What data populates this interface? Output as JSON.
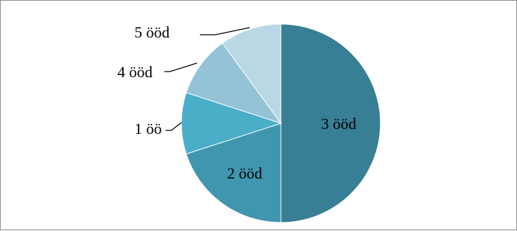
{
  "chart_data": {
    "type": "pie",
    "title": "",
    "start_angle_deg": 0,
    "direction": "clockwise",
    "slices": [
      {
        "label": "3 ööd",
        "value": 50,
        "color": "#377f95"
      },
      {
        "label": "2 ööd",
        "value": 20,
        "color": "#4196af"
      },
      {
        "label": "1 öö",
        "value": 10,
        "color": "#4aaec9"
      },
      {
        "label": "4 ööd",
        "value": 10,
        "color": "#94c3d8"
      },
      {
        "label": "5 ööd",
        "value": 10,
        "color": "#bad7e5"
      }
    ],
    "labels": "on-slice-and-outside-with-leader-lines",
    "legend": "none"
  }
}
